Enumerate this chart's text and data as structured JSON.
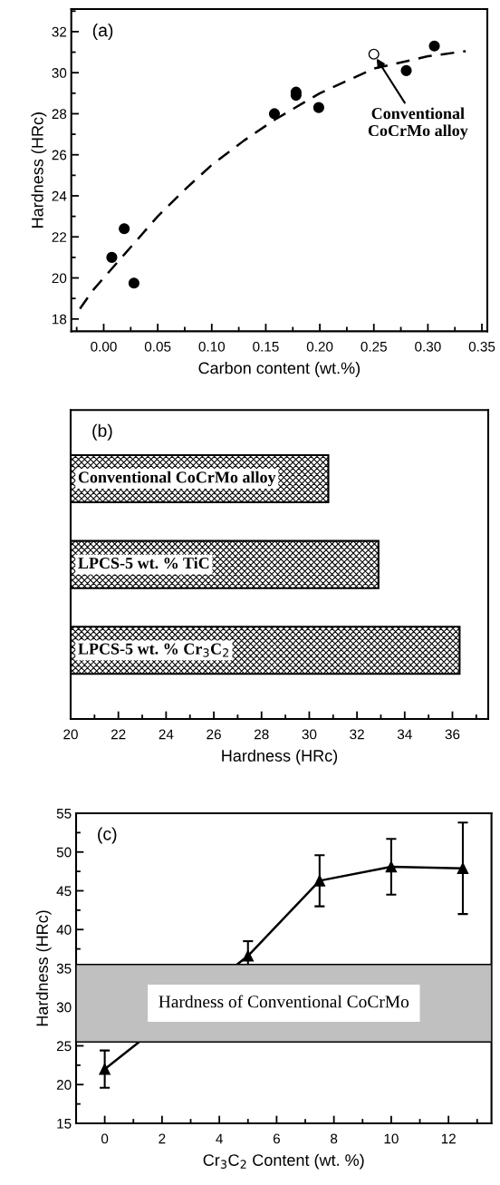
{
  "chart_data": [
    {
      "type": "scatter",
      "xlabel": "Carbon content (wt.%)",
      "ylabel": "Hardness (HRc)",
      "annotations": [
        "(a)",
        {
          "text": "Conventional\nCoCrMo alloy",
          "x": 0.25,
          "y": 30.9
        }
      ],
      "xlim": [
        -0.03,
        0.355
      ],
      "ylim": [
        17.4,
        33.1
      ],
      "xticks": [
        {
          "value": 0.0,
          "label": "0.00"
        },
        {
          "value": 0.05,
          "label": "0.05"
        },
        {
          "value": 0.1,
          "label": "0.10"
        },
        {
          "value": 0.15,
          "label": "0.15"
        },
        {
          "value": 0.2,
          "label": "0.20"
        },
        {
          "value": 0.25,
          "label": "0.25"
        },
        {
          "value": 0.3,
          "label": "0.30"
        },
        {
          "value": 0.35,
          "label": "0.35"
        },
        {
          "value": -0.025,
          "label": null
        },
        {
          "value": 0.025,
          "label": null
        },
        {
          "value": 0.075,
          "label": null
        },
        {
          "value": 0.125,
          "label": null
        },
        {
          "value": 0.175,
          "label": null
        },
        {
          "value": 0.225,
          "label": null
        },
        {
          "value": 0.275,
          "label": null
        },
        {
          "value": 0.325,
          "label": null
        }
      ],
      "yticks": [
        18,
        20,
        22,
        24,
        26,
        28,
        30,
        32,
        {
          "value": 19,
          "label": null
        },
        {
          "value": 21,
          "label": null
        },
        {
          "value": 23,
          "label": null
        },
        {
          "value": 25,
          "label": null
        },
        {
          "value": 27,
          "label": null
        },
        {
          "value": 29,
          "label": null
        },
        {
          "value": 31,
          "label": null
        },
        {
          "value": 33,
          "label": null
        }
      ],
      "series": [
        {
          "type": "scatter",
          "marker": "circle",
          "color": "#000000",
          "x": [
            0.0075,
            0.019,
            0.028,
            0.158,
            0.178,
            0.178,
            0.199,
            0.28,
            0.306
          ],
          "values": [
            21.0,
            22.4,
            19.75,
            28.0,
            29.05,
            28.9,
            28.3,
            30.1,
            31.3
          ]
        },
        {
          "type": "scatter",
          "marker": "circle",
          "color": "#ffffff",
          "x": [
            0.25
          ],
          "values": [
            30.9
          ]
        },
        {
          "type": "line",
          "marker": "none",
          "line_style": "dashed",
          "color": "#000000",
          "x": [
            -0.022,
            -0.01,
            0.02,
            0.05,
            0.078,
            0.1,
            0.13,
            0.158,
            0.2,
            0.25,
            0.3,
            0.335
          ],
          "values": [
            18.5,
            19.4,
            21.2,
            23.0,
            24.45,
            25.5,
            26.7,
            27.7,
            29.0,
            30.2,
            30.8,
            31.05
          ]
        }
      ]
    },
    {
      "type": "bar",
      "orientation": "horizontal",
      "xlabel": "Hardness (HRc)",
      "annotations": [
        "(b)"
      ],
      "tick_labels": "x",
      "categories": [
        "Conventional CoCrMo alloy",
        "LPCS-5 wt. % TiC",
        "LPCS-5 wt. % Cr$_{3}$C$_{2}$"
      ],
      "values": [
        30.8,
        32.9,
        36.3
      ],
      "color": "#000000",
      "xlim": [
        20,
        37.5
      ],
      "xticks": [
        20,
        22,
        24,
        26,
        28,
        30,
        32,
        34,
        36,
        {
          "value": 21,
          "label": null
        },
        {
          "value": 23,
          "label": null
        },
        {
          "value": 25,
          "label": null
        },
        {
          "value": 27,
          "label": null
        },
        {
          "value": 29,
          "label": null
        },
        {
          "value": 31,
          "label": null
        },
        {
          "value": 33,
          "label": null
        },
        {
          "value": 35,
          "label": null
        },
        {
          "value": 37,
          "label": null
        }
      ]
    },
    {
      "type": "line",
      "xlabel": "Cr$_{3}$C$_{2}$ Content (wt. %)",
      "ylabel": "Hardness (HRc)",
      "annotations": [
        "(c)"
      ],
      "marker": "triangle",
      "line_style": "solid",
      "x": [
        0,
        5,
        7.5,
        10,
        12.5
      ],
      "values": [
        22.0,
        36.6,
        46.3,
        48.1,
        47.9
      ],
      "errors": [
        2.4,
        1.9,
        3.3,
        3.6,
        5.9
      ],
      "color": "#000000",
      "xlim": [
        -1,
        13.5
      ],
      "ylim": [
        15,
        55
      ],
      "xticks": [
        0,
        2,
        4,
        6,
        8,
        10,
        12,
        {
          "value": 1,
          "label": null
        },
        {
          "value": 3,
          "label": null
        },
        {
          "value": 5,
          "label": null
        },
        {
          "value": 7,
          "label": null
        },
        {
          "value": 9,
          "label": null
        },
        {
          "value": 11,
          "label": null
        },
        {
          "value": 13,
          "label": null
        }
      ],
      "yticks": [
        15,
        20,
        25,
        30,
        35,
        40,
        45,
        50,
        55,
        {
          "value": 17.5,
          "label": null
        },
        {
          "value": 22.5,
          "label": null
        },
        {
          "value": 27.5,
          "label": null
        },
        {
          "value": 32.5,
          "label": null
        },
        {
          "value": 37.5,
          "label": null
        },
        {
          "value": 42.5,
          "label": null
        },
        {
          "value": 47.5,
          "label": null
        },
        {
          "value": 52.5,
          "label": null
        }
      ],
      "bands": [
        {
          "axis": "y",
          "from": 25.5,
          "to": 35.5,
          "label": "Hardness of Conventional CoCrMo",
          "color": "#c0c0c0"
        }
      ]
    }
  ]
}
